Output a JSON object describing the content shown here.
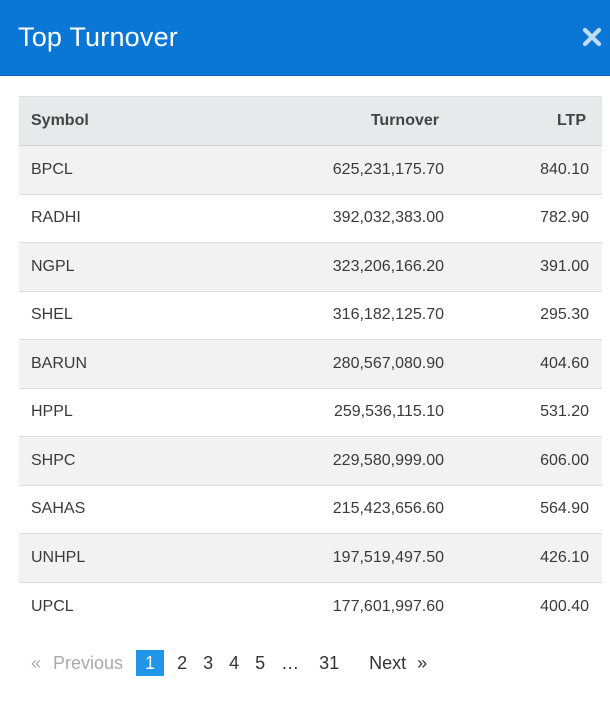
{
  "modal": {
    "title": "Top Turnover"
  },
  "table": {
    "headers": {
      "symbol": "Symbol",
      "turnover": "Turnover",
      "ltp": "LTP"
    },
    "rows": [
      {
        "symbol": "BPCL",
        "turnover": "625,231,175.70",
        "ltp": "840.10"
      },
      {
        "symbol": "RADHI",
        "turnover": "392,032,383.00",
        "ltp": "782.90"
      },
      {
        "symbol": "NGPL",
        "turnover": "323,206,166.20",
        "ltp": "391.00"
      },
      {
        "symbol": "SHEL",
        "turnover": "316,182,125.70",
        "ltp": "295.30"
      },
      {
        "symbol": "BARUN",
        "turnover": "280,567,080.90",
        "ltp": "404.60"
      },
      {
        "symbol": "HPPL",
        "turnover": "259,536,115.10",
        "ltp": "531.20"
      },
      {
        "symbol": "SHPC",
        "turnover": "229,580,999.00",
        "ltp": "606.00"
      },
      {
        "symbol": "SAHAS",
        "turnover": "215,423,656.60",
        "ltp": "564.90"
      },
      {
        "symbol": "UNHPL",
        "turnover": "197,519,497.50",
        "ltp": "426.10"
      },
      {
        "symbol": "UPCL",
        "turnover": "177,601,997.60",
        "ltp": "400.40"
      }
    ]
  },
  "pagination": {
    "prev_arrow": "«",
    "prev_label": "Previous",
    "pages": [
      "1",
      "2",
      "3",
      "4",
      "5",
      "…",
      "31"
    ],
    "active_page": "1",
    "next_label": "Next",
    "next_arrow": "»"
  },
  "colors": {
    "header_bg": "#0a77d6",
    "active_page_bg": "#2196e8",
    "table_header_bg": "#e8e9ea",
    "striped_row_bg": "#f2f2f2"
  },
  "icons": {
    "close": "close-icon"
  }
}
